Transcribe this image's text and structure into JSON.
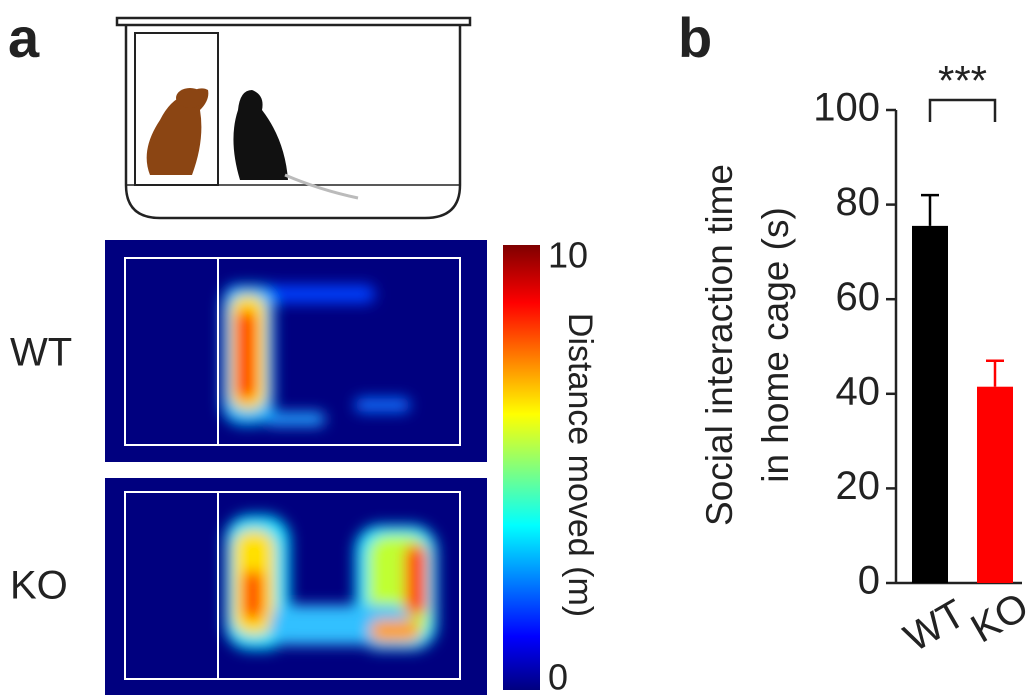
{
  "panel_labels": [
    "a",
    "b"
  ],
  "heatmap": {
    "row_labels": [
      "WT",
      "KO"
    ],
    "colorbar": {
      "label": "Distance moved (m)",
      "clim": [
        0,
        10
      ],
      "ticks": [
        0,
        10
      ]
    }
  },
  "chart_data": {
    "type": "bar",
    "ylabel": [
      "Social interaction time",
      "in home cage (s)"
    ],
    "categories": [
      "WT",
      "KO"
    ],
    "values": [
      75.5,
      41.5
    ],
    "errors": [
      6.5,
      5.5
    ],
    "colors": [
      "#000000",
      "#ff0000"
    ],
    "ylim": [
      0,
      100
    ],
    "yticks": [
      0,
      20,
      40,
      60,
      80,
      100
    ],
    "annotation": "***"
  }
}
